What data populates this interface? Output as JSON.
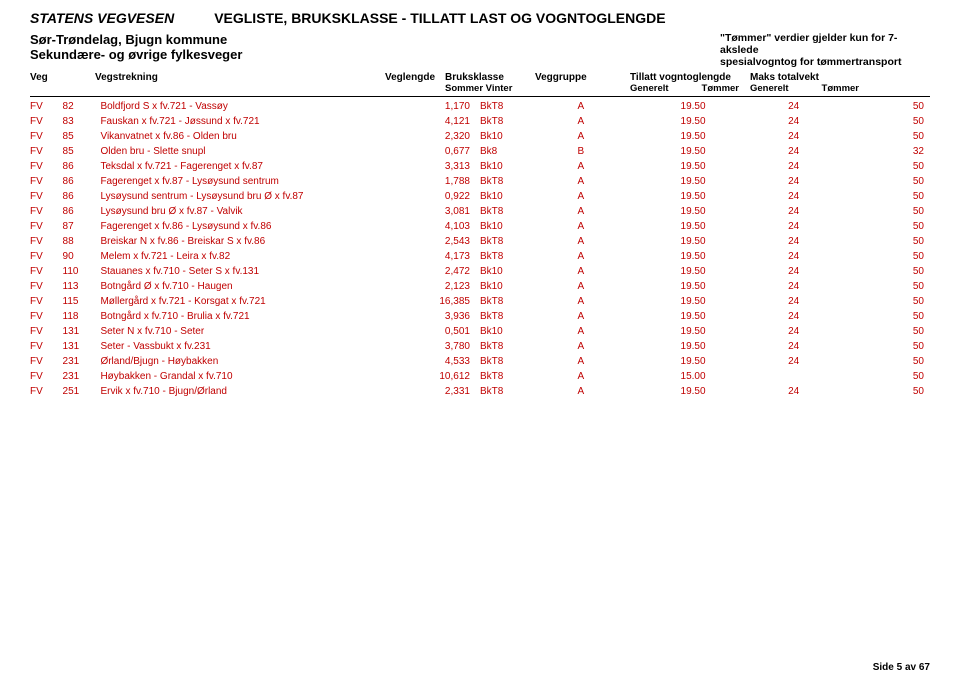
{
  "header": {
    "org": "STATENS VEGVESEN",
    "docTitle": "VEGLISTE,  BRUKSKLASSE - TILLATT LAST OG VOGNTOGLENGDE",
    "region": "Sør-Trøndelag, Bjugn kommune",
    "subregion": "Sekundære- og øvrige fylkesveger",
    "tommerNote1": "\"Tømmer\" verdier gjelder kun for 7-akslede",
    "tommerNote2": "spesialvogntog for tømmertransport"
  },
  "columns": {
    "veg": "Veg",
    "vegstrekning": "Vegstrekning",
    "veglengde": "Veglengde",
    "bruksklasse": "Bruksklasse",
    "bruksklasseSub": "Sommer   Vinter",
    "veggruppe": "Veggruppe",
    "tillatt": "Tillatt vogntoglengde",
    "maks": "Maks totalvekt",
    "generelt": "Generelt",
    "tommer": "Tømmer"
  },
  "rows": [
    {
      "veg": "FV",
      "num": "82",
      "strek": "Boldfjord S x fv.721 - Vassøy",
      "len": "1,170",
      "bruk": "BkT8",
      "grp": "A",
      "vgG": "19.50",
      "vgT": "24",
      "mkG": "",
      "mkT": "50"
    },
    {
      "veg": "FV",
      "num": "83",
      "strek": "Fauskan x fv.721 - Jøssund x fv.721",
      "len": "4,121",
      "bruk": "BkT8",
      "grp": "A",
      "vgG": "19.50",
      "vgT": "24",
      "mkG": "",
      "mkT": "50"
    },
    {
      "veg": "FV",
      "num": "85",
      "strek": "Vikanvatnet x fv.86 - Olden bru",
      "len": "2,320",
      "bruk": "Bk10",
      "grp": "A",
      "vgG": "19.50",
      "vgT": "24",
      "mkG": "",
      "mkT": "50"
    },
    {
      "veg": "FV",
      "num": "85",
      "strek": "Olden bru - Slette snupl",
      "len": "0,677",
      "bruk": "Bk8",
      "grp": "B",
      "vgG": "19.50",
      "vgT": "24",
      "mkG": "",
      "mkT": "32"
    },
    {
      "veg": "FV",
      "num": "86",
      "strek": "Teksdal x fv.721 - Fagerenget x fv.87",
      "len": "3,313",
      "bruk": "Bk10",
      "grp": "A",
      "vgG": "19.50",
      "vgT": "24",
      "mkG": "",
      "mkT": "50"
    },
    {
      "veg": "FV",
      "num": "86",
      "strek": "Fagerenget x fv.87 - Lysøysund sentrum",
      "len": "1,788",
      "bruk": "BkT8",
      "grp": "A",
      "vgG": "19.50",
      "vgT": "24",
      "mkG": "",
      "mkT": "50"
    },
    {
      "veg": "FV",
      "num": "86",
      "strek": "Lysøysund sentrum - Lysøysund bru Ø x fv.87",
      "len": "0,922",
      "bruk": "Bk10",
      "grp": "A",
      "vgG": "19.50",
      "vgT": "24",
      "mkG": "",
      "mkT": "50"
    },
    {
      "veg": "FV",
      "num": "86",
      "strek": "Lysøysund bru Ø x fv.87 - Valvik",
      "len": "3,081",
      "bruk": "BkT8",
      "grp": "A",
      "vgG": "19.50",
      "vgT": "24",
      "mkG": "",
      "mkT": "50"
    },
    {
      "veg": "FV",
      "num": "87",
      "strek": "Fagerenget x fv.86 - Lysøysund x fv.86",
      "len": "4,103",
      "bruk": "Bk10",
      "grp": "A",
      "vgG": "19.50",
      "vgT": "24",
      "mkG": "",
      "mkT": "50"
    },
    {
      "veg": "FV",
      "num": "88",
      "strek": "Breiskar N x fv.86 - Breiskar S x fv.86",
      "len": "2,543",
      "bruk": "BkT8",
      "grp": "A",
      "vgG": "19.50",
      "vgT": "24",
      "mkG": "",
      "mkT": "50"
    },
    {
      "veg": "FV",
      "num": "90",
      "strek": "Melem x fv.721 - Leira x fv.82",
      "len": "4,173",
      "bruk": "BkT8",
      "grp": "A",
      "vgG": "19.50",
      "vgT": "24",
      "mkG": "",
      "mkT": "50"
    },
    {
      "veg": "FV",
      "num": "110",
      "strek": "Stauanes x fv.710 - Seter S x fv.131",
      "len": "2,472",
      "bruk": "Bk10",
      "grp": "A",
      "vgG": "19.50",
      "vgT": "24",
      "mkG": "",
      "mkT": "50"
    },
    {
      "veg": "FV",
      "num": "113",
      "strek": "Botngård Ø x fv.710 - Haugen",
      "len": "2,123",
      "bruk": "Bk10",
      "grp": "A",
      "vgG": "19.50",
      "vgT": "24",
      "mkG": "",
      "mkT": "50"
    },
    {
      "veg": "FV",
      "num": "115",
      "strek": "Møllergård x fv.721 - Korsgat x fv.721",
      "len": "16,385",
      "bruk": "BkT8",
      "grp": "A",
      "vgG": "19.50",
      "vgT": "24",
      "mkG": "",
      "mkT": "50"
    },
    {
      "veg": "FV",
      "num": "118",
      "strek": "Botngård x fv.710 - Brulia x fv.721",
      "len": "3,936",
      "bruk": "BkT8",
      "grp": "A",
      "vgG": "19.50",
      "vgT": "24",
      "mkG": "",
      "mkT": "50"
    },
    {
      "veg": "FV",
      "num": "131",
      "strek": "Seter N x fv.710 - Seter",
      "len": "0,501",
      "bruk": "Bk10",
      "grp": "A",
      "vgG": "19.50",
      "vgT": "24",
      "mkG": "",
      "mkT": "50"
    },
    {
      "veg": "FV",
      "num": "131",
      "strek": "Seter - Vassbukt x fv.231",
      "len": "3,780",
      "bruk": "BkT8",
      "grp": "A",
      "vgG": "19.50",
      "vgT": "24",
      "mkG": "",
      "mkT": "50"
    },
    {
      "veg": "FV",
      "num": "231",
      "strek": "Ørland/Bjugn - Høybakken",
      "len": "4,533",
      "bruk": "BkT8",
      "grp": "A",
      "vgG": "19.50",
      "vgT": "24",
      "mkG": "",
      "mkT": "50"
    },
    {
      "veg": "FV",
      "num": "231",
      "strek": "Høybakken - Grandal x fv.710",
      "len": "10,612",
      "bruk": "BkT8",
      "grp": "A",
      "vgG": "15.00",
      "vgT": "",
      "mkG": "",
      "mkT": "50"
    },
    {
      "veg": "FV",
      "num": "251",
      "strek": "Ervik x fv.710 - Bjugn/Ørland",
      "len": "2,331",
      "bruk": "BkT8",
      "grp": "A",
      "vgG": "19.50",
      "vgT": "24",
      "mkG": "",
      "mkT": "50"
    }
  ],
  "footer": "Side 5 av 67",
  "colors": {
    "row": "#c00000",
    "text": "#000000",
    "bg": "#ffffff"
  }
}
